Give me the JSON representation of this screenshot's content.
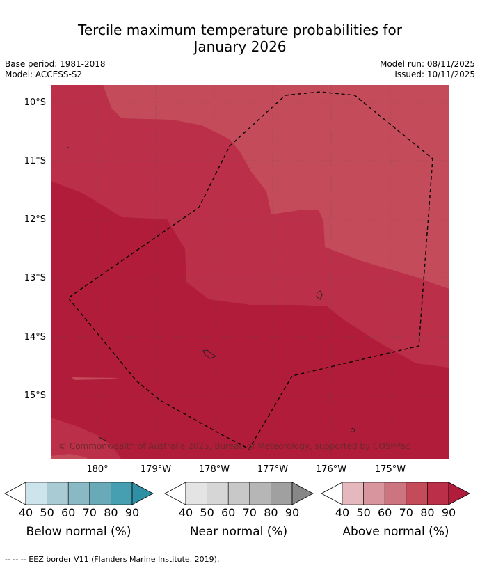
{
  "title_line1": "Tercile maximum temperature probabilities for",
  "title_line2": "January 2026",
  "meta": {
    "base_period": "Base period: 1981-2018",
    "model": "Model: ACCESS-S2",
    "model_run": "Model run: 08/11/2025",
    "issued": "Issued: 10/11/2025"
  },
  "map": {
    "lat_labels": [
      "10°S",
      "11°S",
      "12°S",
      "13°S",
      "14°S",
      "15°S"
    ],
    "lon_labels": [
      "180°",
      "179°W",
      "178°W",
      "177°W",
      "176°W",
      "175°W"
    ],
    "copyright": "© Commonwealth of Australia 2025, Bureau of Meteorology, supported by COSPPac",
    "colors": {
      "above_70": "#c44b5a",
      "above_80": "#bb2f48",
      "above_90": "#b11c3b",
      "coast": "#222222"
    }
  },
  "legends": [
    {
      "label": "Below normal (%)",
      "ticks": [
        "40",
        "50",
        "60",
        "70",
        "80",
        "90"
      ],
      "colors": [
        "#cde4ec",
        "#a8cbd4",
        "#88b9c4",
        "#6aaab8",
        "#459fb0",
        "#2f8fa4"
      ]
    },
    {
      "label": "Near normal (%)",
      "ticks": [
        "40",
        "50",
        "60",
        "70",
        "80",
        "90"
      ],
      "colors": [
        "#e4e4e4",
        "#d6d6d6",
        "#c8c8c8",
        "#b6b6b6",
        "#a0a0a0",
        "#878787"
      ]
    },
    {
      "label": "Above normal (%)",
      "ticks": [
        "40",
        "50",
        "60",
        "70",
        "80",
        "90"
      ],
      "colors": [
        "#e4b8bd",
        "#d8959d",
        "#cc747f",
        "#c44b5a",
        "#bb2f48",
        "#b11c3b"
      ]
    }
  ],
  "footnote": "--  --  -- EEZ border V11 (Flanders Marine Institute, 2019)."
}
